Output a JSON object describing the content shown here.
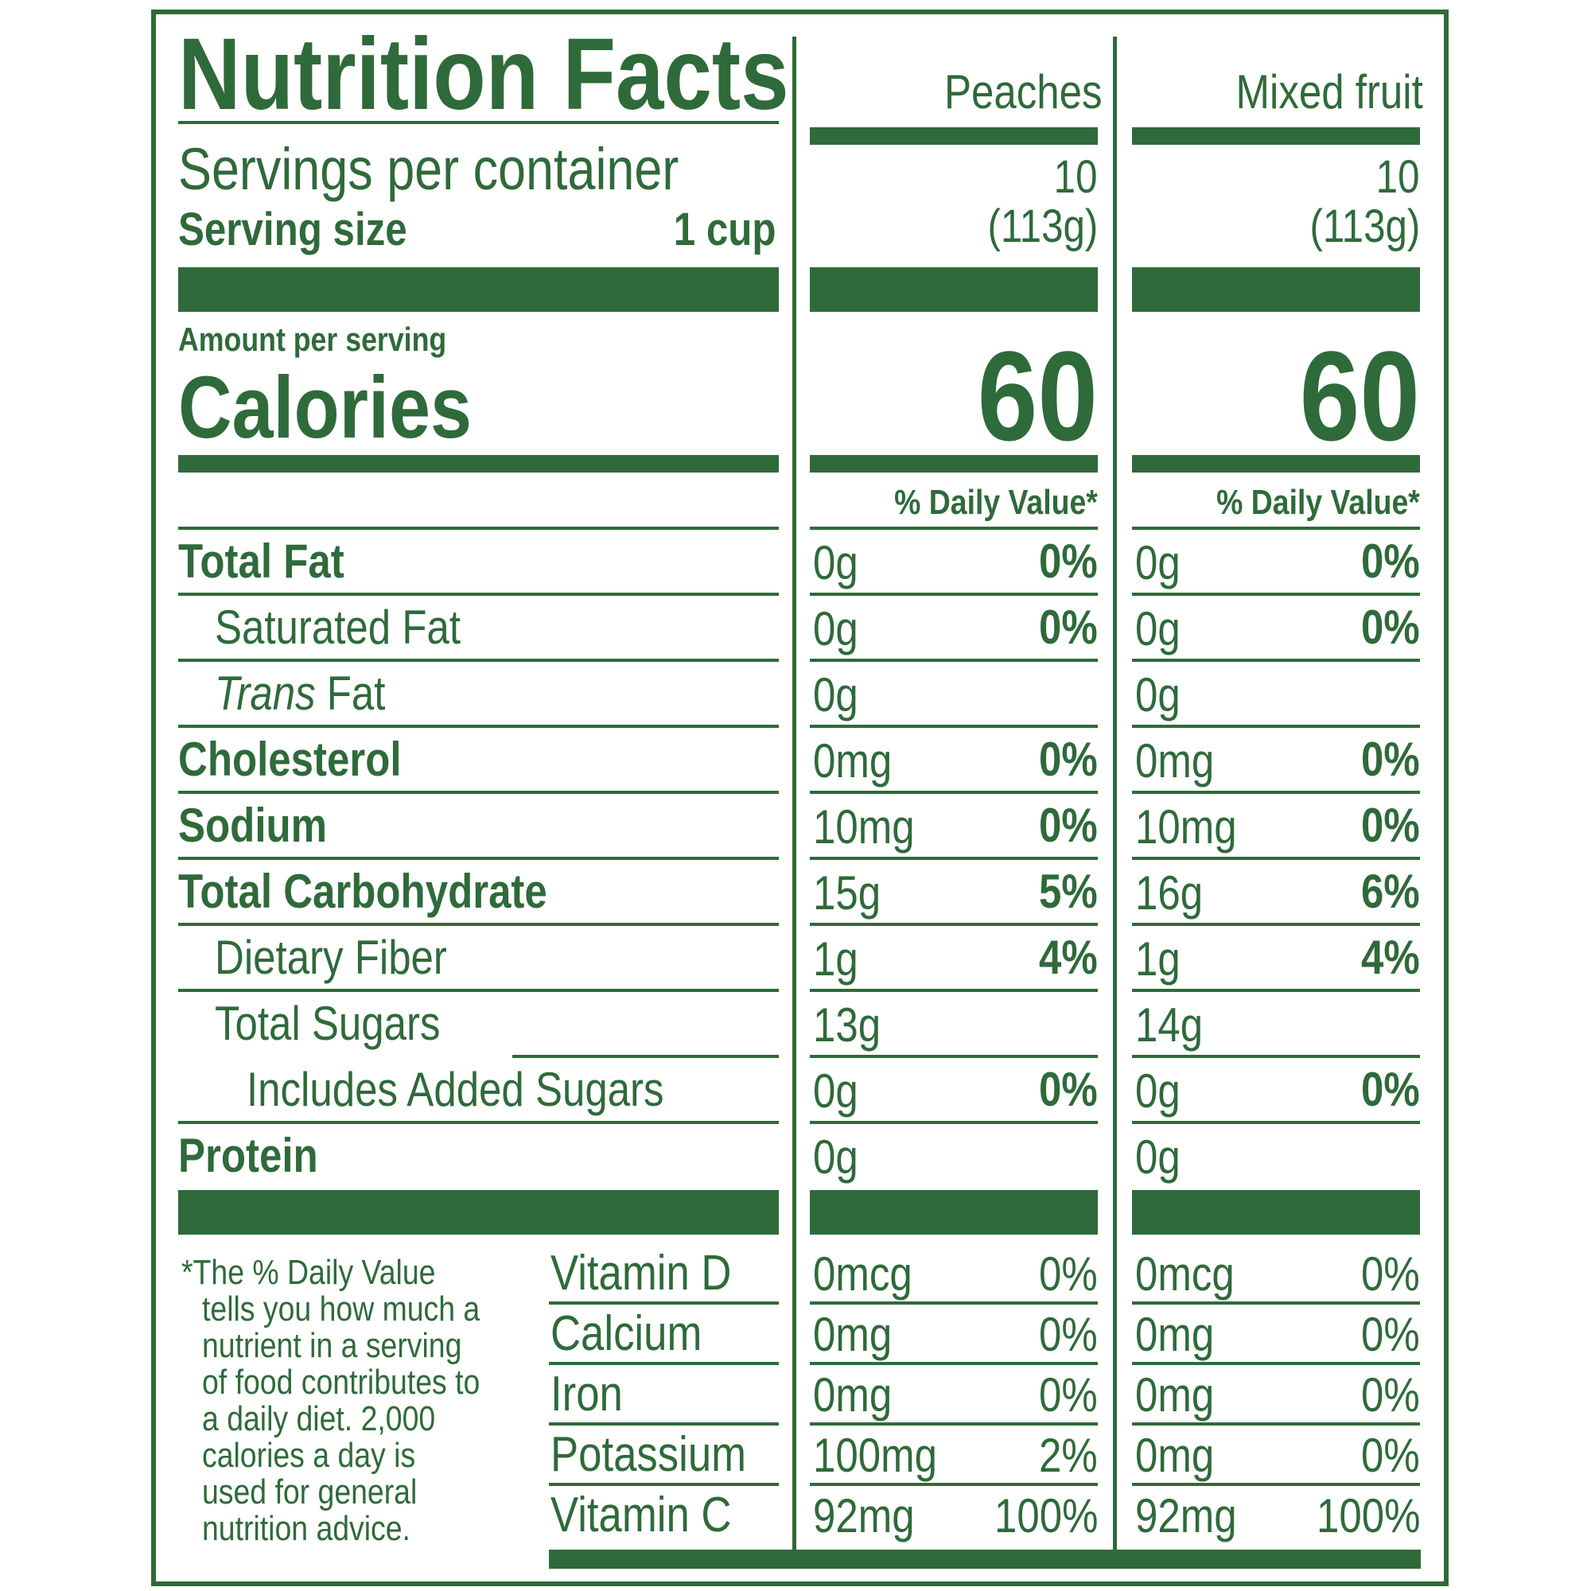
{
  "title": "Nutrition Facts",
  "servings_label": "Servings per container",
  "serving_size_label": "Serving size",
  "serving_size_value": "1 cup",
  "amount_per_serving": "Amount per serving",
  "calories_label": "Calories",
  "dv_header": "% Daily Value*",
  "columns": [
    {
      "name": "Peaches",
      "servings": "10",
      "serving_grams": "(113g)",
      "calories": "60"
    },
    {
      "name": "Mixed fruit",
      "servings": "10",
      "serving_grams": "(113g)",
      "calories": "60"
    }
  ],
  "nutrients": [
    {
      "label": "Total Fat",
      "bold": true,
      "values": [
        {
          "amt": "0g",
          "dv": "0%"
        },
        {
          "amt": "0g",
          "dv": "0%"
        }
      ]
    },
    {
      "label": "Saturated Fat",
      "values": [
        {
          "amt": "0g",
          "dv": "0%"
        },
        {
          "amt": "0g",
          "dv": "0%"
        }
      ]
    },
    {
      "label_italic": "Trans",
      "label": " Fat",
      "values": [
        {
          "amt": "0g",
          "dv": ""
        },
        {
          "amt": "0g",
          "dv": ""
        }
      ]
    },
    {
      "label": "Cholesterol",
      "bold": true,
      "values": [
        {
          "amt": "0mg",
          "dv": "0%"
        },
        {
          "amt": "0mg",
          "dv": "0%"
        }
      ]
    },
    {
      "label": "Sodium",
      "bold": true,
      "values": [
        {
          "amt": "10mg",
          "dv": "0%"
        },
        {
          "amt": "10mg",
          "dv": "0%"
        }
      ]
    },
    {
      "label": "Total Carbohydrate",
      "bold": true,
      "values": [
        {
          "amt": "15g",
          "dv": "5%"
        },
        {
          "amt": "16g",
          "dv": "6%"
        }
      ]
    },
    {
      "label": "Dietary Fiber",
      "values": [
        {
          "amt": "1g",
          "dv": "4%"
        },
        {
          "amt": "1g",
          "dv": "4%"
        }
      ]
    },
    {
      "label": "Total Sugars",
      "values": [
        {
          "amt": "13g",
          "dv": ""
        },
        {
          "amt": "14g",
          "dv": ""
        }
      ]
    },
    {
      "label": "Includes Added Sugars",
      "values": [
        {
          "amt": "0g",
          "dv": "0%"
        },
        {
          "amt": "0g",
          "dv": "0%"
        }
      ]
    },
    {
      "label": "Protein",
      "bold": true,
      "values": [
        {
          "amt": "0g",
          "dv": ""
        },
        {
          "amt": "0g",
          "dv": ""
        }
      ]
    }
  ],
  "vitamins": [
    {
      "label": "Vitamin D",
      "values": [
        {
          "amt": "0mcg",
          "dv": "0%"
        },
        {
          "amt": "0mcg",
          "dv": "0%"
        }
      ]
    },
    {
      "label": "Calcium",
      "values": [
        {
          "amt": "0mg",
          "dv": "0%"
        },
        {
          "amt": "0mg",
          "dv": "0%"
        }
      ]
    },
    {
      "label": "Iron",
      "values": [
        {
          "amt": "0mg",
          "dv": "0%"
        },
        {
          "amt": "0mg",
          "dv": "0%"
        }
      ]
    },
    {
      "label": "Potassium",
      "values": [
        {
          "amt": "100mg",
          "dv": "2%"
        },
        {
          "amt": "0mg",
          "dv": "0%"
        }
      ]
    },
    {
      "label": "Vitamin C",
      "values": [
        {
          "amt": "92mg",
          "dv": "100%"
        },
        {
          "amt": "92mg",
          "dv": "100%"
        }
      ]
    }
  ],
  "footnote": [
    "*The % Daily Value",
    "tells you how much a",
    "nutrient in a serving",
    "of food contributes to",
    "a daily diet. 2,000",
    "calories a day is",
    "used for general",
    "nutrition advice."
  ],
  "colors": {
    "ink": "#2f6a3a",
    "background": "#ffffff"
  }
}
